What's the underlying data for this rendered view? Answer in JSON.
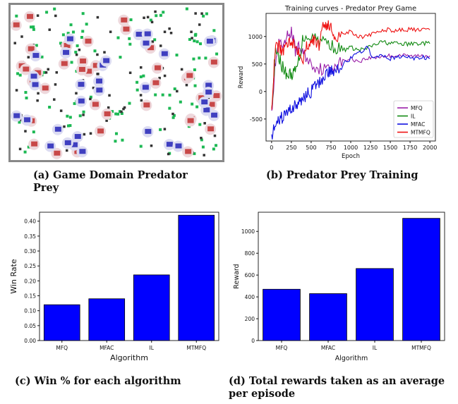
{
  "captions": {
    "a": "(a) Game Domain Predator Prey",
    "b": "(b) Predator Prey Training",
    "c": "(c) Win % for each algorithm",
    "d": "(d) Total rewards taken as an average per episode"
  },
  "colors": {
    "predator": "#c84848",
    "prey": "#3f3fc0",
    "food": "#1db954",
    "obstacle": "#333333",
    "bar": "#0000ff"
  },
  "chart_data": [
    {
      "type": "line",
      "title": "Training curves - Predator Prey Game",
      "xlabel": "Epoch",
      "ylabel": "Reward",
      "xlim": [
        -70,
        2070
      ],
      "ylim": [
        -900,
        1420
      ],
      "xticks": [
        0,
        250,
        500,
        750,
        1000,
        1250,
        1500,
        1750,
        2000
      ],
      "yticks": [
        -500,
        0,
        500,
        1000
      ],
      "legend": "bottom-right",
      "series": [
        {
          "name": "MFQ",
          "color": "#9a1fa8",
          "x": [
            0,
            50,
            100,
            150,
            200,
            250,
            300,
            350,
            400,
            500,
            600,
            700,
            800,
            900,
            1000,
            1100,
            1200,
            1300,
            1400,
            1500,
            1600,
            1700,
            1800,
            1900,
            2000
          ],
          "y": [
            -350,
            550,
            900,
            750,
            1000,
            1100,
            750,
            800,
            700,
            500,
            420,
            400,
            500,
            550,
            600,
            550,
            600,
            620,
            640,
            650,
            660,
            650,
            640,
            660,
            650
          ]
        },
        {
          "name": "IL",
          "color": "#118a11",
          "x": [
            0,
            50,
            100,
            150,
            200,
            250,
            300,
            350,
            400,
            500,
            600,
            700,
            800,
            900,
            1000,
            1100,
            1200,
            1300,
            1400,
            1500,
            1600,
            1700,
            1800,
            1900,
            2000
          ],
          "y": [
            -300,
            700,
            600,
            400,
            300,
            320,
            350,
            600,
            1000,
            1020,
            950,
            900,
            800,
            750,
            800,
            750,
            780,
            850,
            900,
            880,
            870,
            860,
            870,
            880,
            870
          ]
        },
        {
          "name": "MFAC",
          "color": "#1010e0",
          "x": [
            0,
            50,
            100,
            150,
            200,
            250,
            300,
            350,
            400,
            450,
            500,
            550,
            600,
            650,
            700,
            750,
            800,
            900,
            1000,
            1100,
            1200,
            1300,
            1400,
            1500,
            1600,
            1700,
            1800,
            1900,
            2000
          ],
          "y": [
            -780,
            -650,
            -520,
            -450,
            -380,
            -300,
            -250,
            -220,
            -100,
            -50,
            0,
            100,
            150,
            250,
            350,
            350,
            400,
            500,
            600,
            700,
            800,
            600,
            650,
            600,
            620,
            640,
            600,
            620,
            600
          ]
        },
        {
          "name": "MTMFQ",
          "color": "#ee1111",
          "x": [
            0,
            50,
            100,
            150,
            200,
            250,
            300,
            350,
            400,
            450,
            500,
            550,
            600,
            650,
            700,
            750,
            800,
            900,
            1000,
            1100,
            1200,
            1300,
            1400,
            1500,
            1600,
            1700,
            1800,
            1900,
            2000
          ],
          "y": [
            -330,
            850,
            800,
            700,
            900,
            950,
            800,
            750,
            600,
            850,
            950,
            900,
            850,
            1250,
            1200,
            1150,
            1000,
            1050,
            1100,
            1000,
            1000,
            1050,
            1120,
            1120,
            1110,
            1130,
            1120,
            1110,
            1120
          ]
        }
      ]
    },
    {
      "type": "bar",
      "categories": [
        "MFQ",
        "MFAC",
        "IL",
        "MTMFQ"
      ],
      "values": [
        0.12,
        0.14,
        0.22,
        0.42
      ],
      "xlabel": "Algorithm",
      "ylabel": "Win Rate",
      "ylim": [
        0,
        0.43
      ],
      "yticks": [
        "0.00",
        "0.05",
        "0.10",
        "0.15",
        "0.20",
        "0.25",
        "0.30",
        "0.35",
        "0.40"
      ]
    },
    {
      "type": "bar",
      "categories": [
        "MFQ",
        "MFAC",
        "IL",
        "MTMFQ"
      ],
      "values": [
        470,
        430,
        660,
        1120
      ],
      "xlabel": "Algorithm",
      "ylabel": "Reward",
      "ylim": [
        0,
        1176
      ],
      "yticks": [
        "0",
        "200",
        "400",
        "600",
        "800",
        "1000"
      ]
    }
  ]
}
